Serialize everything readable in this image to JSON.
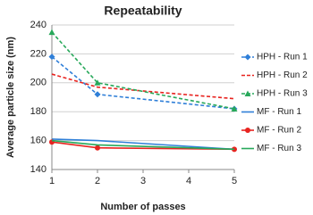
{
  "chart_data": {
    "type": "line",
    "title": "Repeatability",
    "x_label": "Number of passes",
    "y_label": "Average particle size (nm)",
    "x": [
      1,
      2,
      5
    ],
    "xlim": [
      1,
      5
    ],
    "xticks": [
      1,
      2,
      3,
      4,
      5
    ],
    "ylim": [
      140,
      240
    ],
    "yticks": [
      140,
      160,
      180,
      200,
      220,
      240
    ],
    "grid": true,
    "legend": "right",
    "series": [
      {
        "name": "HPH - Run 1",
        "color": "#2f7fd8",
        "dash": true,
        "marker": "diamond",
        "values": [
          218,
          192,
          182
        ]
      },
      {
        "name": "HPH - Run 2",
        "color": "#e8231f",
        "dash": true,
        "marker": "none",
        "values": [
          206,
          197,
          189
        ]
      },
      {
        "name": "HPH - Run 3",
        "color": "#27a85a",
        "dash": true,
        "marker": "triangle",
        "values": [
          235,
          200,
          182
        ]
      },
      {
        "name": "MF - Run 1",
        "color": "#2f7fd8",
        "dash": false,
        "marker": "none",
        "values": [
          161,
          160,
          154
        ]
      },
      {
        "name": "MF - Run 2",
        "color": "#e8231f",
        "dash": false,
        "marker": "circle",
        "values": [
          159,
          155,
          154
        ]
      },
      {
        "name": "MF - Run 3",
        "color": "#27a85a",
        "dash": false,
        "marker": "none",
        "values": [
          160,
          157,
          154
        ]
      }
    ]
  }
}
